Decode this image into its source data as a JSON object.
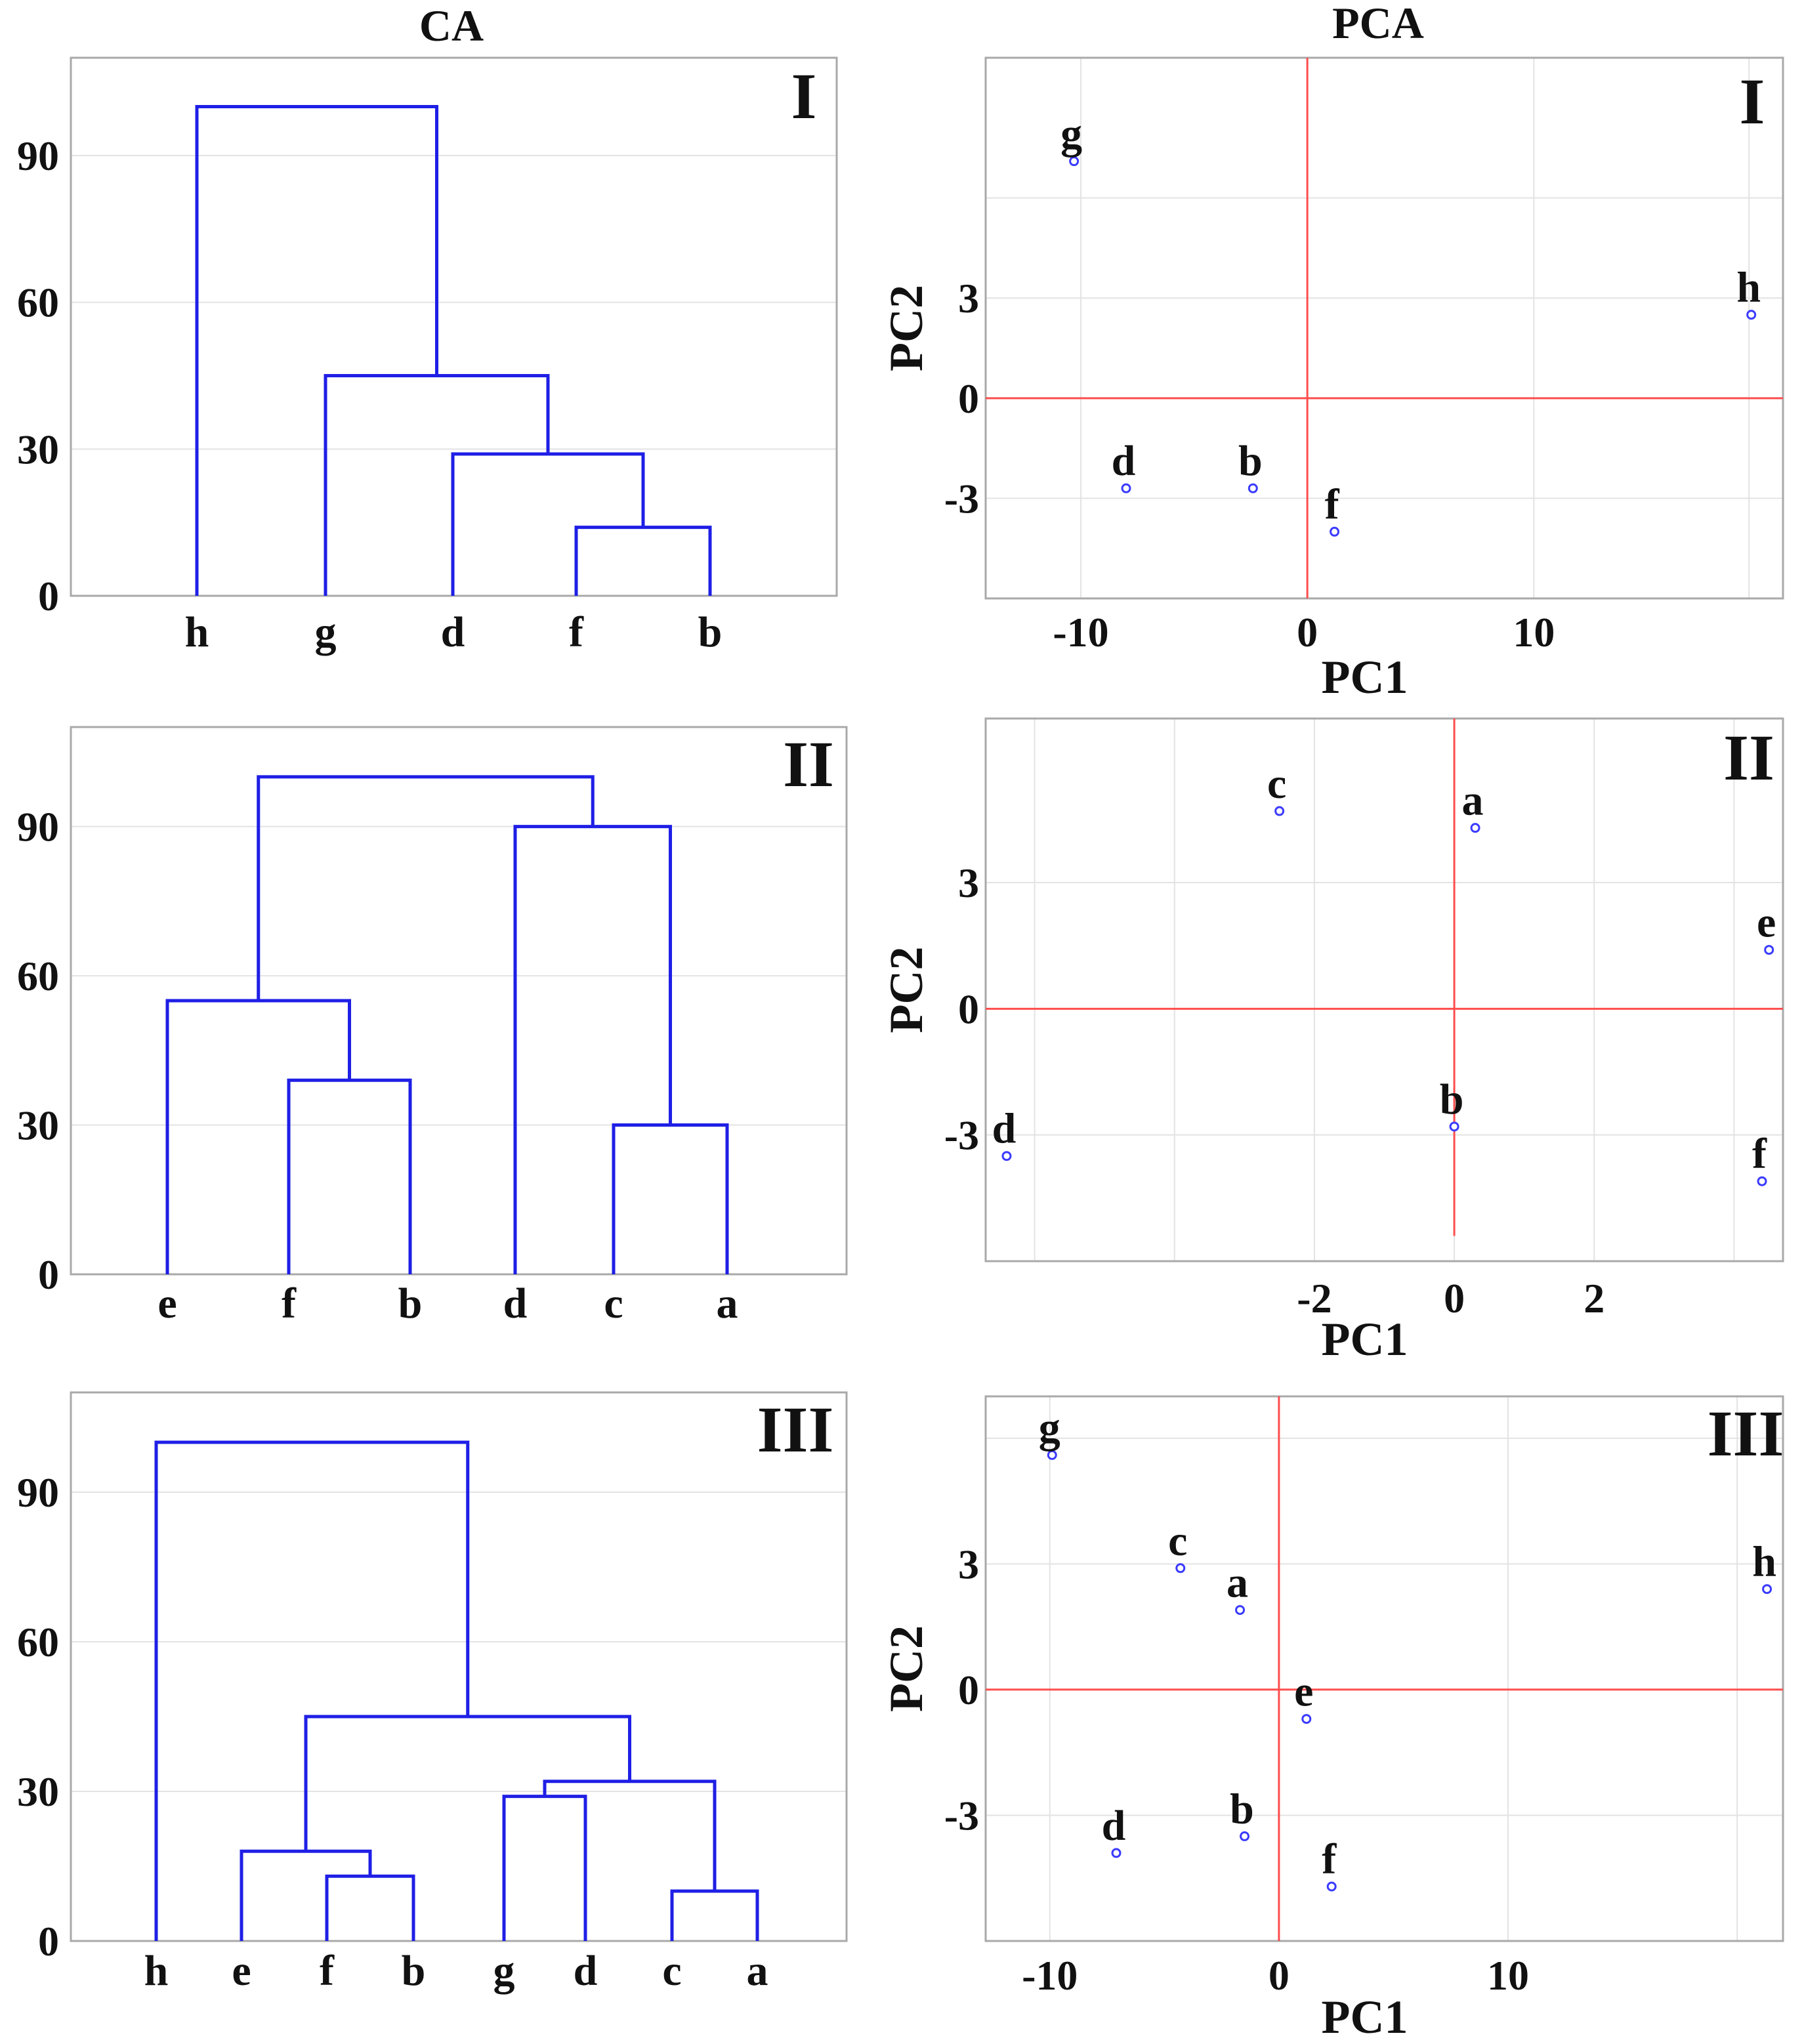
{
  "titles": {
    "ca": "CA",
    "pca": "PCA"
  },
  "chart_data": [
    {
      "type": "dendrogram",
      "id": "ca1",
      "column": "CA",
      "panel_label": "I",
      "ylim": [
        0,
        110
      ],
      "yticks": [
        0,
        30,
        60,
        90
      ],
      "leaves": [
        "h",
        "g",
        "d",
        "f",
        "b"
      ],
      "links": [
        {
          "left": "f",
          "right": "b",
          "height": 14
        },
        {
          "left": "d",
          "right": "fb",
          "height": 29
        },
        {
          "left": "g",
          "right": "dfb",
          "height": 45
        },
        {
          "left": "h",
          "right": "gdfb",
          "height": 100
        }
      ]
    },
    {
      "type": "dendrogram",
      "id": "ca2",
      "column": "CA",
      "panel_label": "II",
      "ylim": [
        0,
        110
      ],
      "yticks": [
        0,
        30,
        60,
        90
      ],
      "leaves": [
        "e",
        "f",
        "b",
        "d",
        "c",
        "a"
      ],
      "links": [
        {
          "left": "c",
          "right": "a",
          "height": 30
        },
        {
          "left": "f",
          "right": "b",
          "height": 39
        },
        {
          "left": "e",
          "right": "fb",
          "height": 55
        },
        {
          "left": "d",
          "right": "ca",
          "height": 90
        },
        {
          "left": "efb",
          "right": "dca",
          "height": 100
        }
      ]
    },
    {
      "type": "dendrogram",
      "id": "ca3",
      "column": "CA",
      "panel_label": "III",
      "ylim": [
        0,
        110
      ],
      "yticks": [
        0,
        30,
        60,
        90
      ],
      "leaves": [
        "h",
        "e",
        "f",
        "b",
        "g",
        "d",
        "c",
        "a"
      ],
      "links": [
        {
          "left": "c",
          "right": "a",
          "height": 10
        },
        {
          "left": "f",
          "right": "b",
          "height": 13
        },
        {
          "left": "e",
          "right": "fb",
          "height": 18
        },
        {
          "left": "g",
          "right": "d",
          "height": 29
        },
        {
          "left": "gd",
          "right": "ca",
          "height": 32
        },
        {
          "left": "efb",
          "right": "gdca",
          "height": 45
        },
        {
          "left": "h",
          "right": "efbgdca",
          "height": 100
        }
      ]
    },
    {
      "type": "scatter",
      "id": "pca1",
      "column": "PCA",
      "panel_label": "I",
      "xlabel": "PC1",
      "ylabel": "PC2",
      "xlim": [
        -14.2,
        21
      ],
      "ylim": [
        -6,
        10.2
      ],
      "xticks": [
        -10,
        0,
        10
      ],
      "yticks": [
        -3,
        0,
        3
      ],
      "gridx": [
        -10,
        0,
        10,
        19.5
      ],
      "gridy": [
        -3,
        0,
        3,
        6
      ],
      "hline": {
        "value": 0,
        "xmin": -14.2,
        "xmax": 21
      },
      "vline": {
        "value": 0,
        "ymin": -6,
        "ymax": 10.2
      },
      "points": [
        {
          "label": "g",
          "x": -10.3,
          "y": 7.1
        },
        {
          "label": "h",
          "x": 19.6,
          "y": 2.5
        },
        {
          "label": "d",
          "x": -8.0,
          "y": -2.7
        },
        {
          "label": "b",
          "x": -2.4,
          "y": -2.7
        },
        {
          "label": "f",
          "x": 1.2,
          "y": -4.0
        }
      ]
    },
    {
      "type": "scatter",
      "id": "pca2",
      "column": "PCA",
      "panel_label": "II",
      "xlabel": "PC1",
      "ylabel": "PC2",
      "xlim": [
        -6.7,
        4.7
      ],
      "ylim": [
        -6,
        6.9
      ],
      "xticks": [
        -2,
        0,
        2
      ],
      "yticks": [
        -3,
        0,
        3
      ],
      "gridx": [
        -6,
        -4,
        -2,
        0,
        2,
        4
      ],
      "gridy": [
        -3,
        0,
        3
      ],
      "hline": {
        "value": 0,
        "xmin": -6.7,
        "xmax": 4.7
      },
      "vline": {
        "value": 0,
        "ymin": -5.4,
        "ymax": 6.9
      },
      "points": [
        {
          "label": "c",
          "x": -2.5,
          "y": 4.7
        },
        {
          "label": "a",
          "x": 0.3,
          "y": 4.3
        },
        {
          "label": "e",
          "x": 4.5,
          "y": 1.4
        },
        {
          "label": "d",
          "x": -6.4,
          "y": -3.5
        },
        {
          "label": "b",
          "x": 0.0,
          "y": -2.8
        },
        {
          "label": "f",
          "x": 4.4,
          "y": -4.1
        }
      ]
    },
    {
      "type": "scatter",
      "id": "pca3",
      "column": "PCA",
      "panel_label": "III",
      "xlabel": "PC1",
      "ylabel": "PC2",
      "xlim": [
        -12.8,
        22
      ],
      "ylim": [
        -6,
        7
      ],
      "xticks": [
        -10,
        0,
        10
      ],
      "yticks": [
        -3,
        0,
        3
      ],
      "gridx": [
        -10,
        0,
        10,
        20
      ],
      "gridy": [
        -3,
        0,
        3,
        6
      ],
      "hline": {
        "value": 0,
        "xmin": -12.8,
        "xmax": 22
      },
      "vline": {
        "value": 0,
        "ymin": -6,
        "ymax": 7
      },
      "points": [
        {
          "label": "g",
          "x": -9.9,
          "y": 5.6
        },
        {
          "label": "c",
          "x": -4.3,
          "y": 2.9
        },
        {
          "label": "a",
          "x": -1.7,
          "y": 1.9
        },
        {
          "label": "h",
          "x": 21.3,
          "y": 2.4
        },
        {
          "label": "e",
          "x": 1.2,
          "y": -0.7
        },
        {
          "label": "d",
          "x": -7.1,
          "y": -3.9
        },
        {
          "label": "b",
          "x": -1.5,
          "y": -3.5
        },
        {
          "label": "f",
          "x": 2.3,
          "y": -4.7
        }
      ]
    }
  ]
}
